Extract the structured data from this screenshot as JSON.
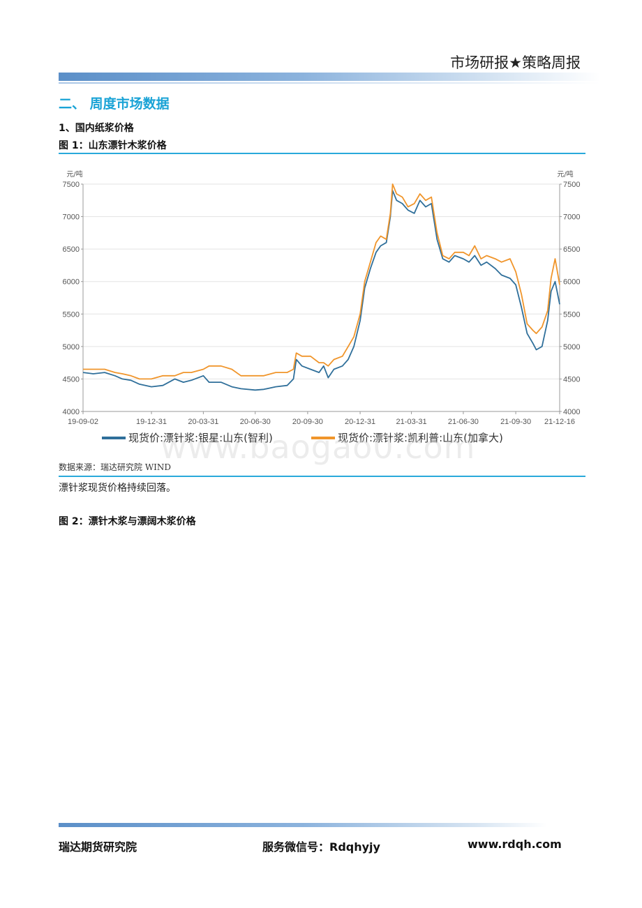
{
  "header": {
    "title": "市场研报★策略周报"
  },
  "section": {
    "title": "二、   周度市场数据"
  },
  "subsection": {
    "title": "1、国内纸浆价格"
  },
  "figure1": {
    "title": "图 1：山东漂针木浆价格"
  },
  "figure2": {
    "title": "图 2：漂针木浆与漂阔木浆价格"
  },
  "source": "数据来源：瑞达研究院 WIND",
  "comment": "漂针浆现货价格持续回落。",
  "watermark": "www.baogao0.com",
  "footer": {
    "org": "瑞达期货研究院",
    "wechat": "服务微信号：Rdqhyjy",
    "website": "www.rdqh.com"
  },
  "chart_data": {
    "type": "line",
    "title": "",
    "xlabel": "",
    "ylabel_left": "元/吨",
    "ylabel_right": "元/吨",
    "ylim": [
      4000,
      7500
    ],
    "yticks": [
      4000,
      4500,
      5000,
      5500,
      6000,
      6500,
      7000,
      7500
    ],
    "xlim": [
      "2019-09-02",
      "2021-12-16"
    ],
    "xticks": [
      "19-09-02",
      "19-12-31",
      "20-03-31",
      "20-06-30",
      "20-09-30",
      "20-12-31",
      "21-03-31",
      "21-06-30",
      "21-09-30",
      "21-12-16"
    ],
    "grid": true,
    "legend": "bottom",
    "series": [
      {
        "name": "现货价:漂针浆:银星:山东(智利)",
        "color": "#2f6f9a",
        "points": [
          [
            "2019-09-02",
            4600
          ],
          [
            "2019-09-20",
            4580
          ],
          [
            "2019-10-10",
            4600
          ],
          [
            "2019-10-28",
            4550
          ],
          [
            "2019-11-10",
            4500
          ],
          [
            "2019-11-25",
            4480
          ],
          [
            "2019-12-10",
            4420
          ],
          [
            "2019-12-31",
            4380
          ],
          [
            "2020-01-20",
            4400
          ],
          [
            "2020-02-10",
            4500
          ],
          [
            "2020-02-25",
            4450
          ],
          [
            "2020-03-10",
            4480
          ],
          [
            "2020-03-31",
            4550
          ],
          [
            "2020-04-10",
            4450
          ],
          [
            "2020-05-01",
            4450
          ],
          [
            "2020-05-20",
            4380
          ],
          [
            "2020-06-05",
            4350
          ],
          [
            "2020-06-30",
            4330
          ],
          [
            "2020-07-15",
            4340
          ],
          [
            "2020-08-05",
            4380
          ],
          [
            "2020-08-25",
            4400
          ],
          [
            "2020-09-05",
            4500
          ],
          [
            "2020-09-10",
            4800
          ],
          [
            "2020-09-20",
            4700
          ],
          [
            "2020-10-05",
            4650
          ],
          [
            "2020-10-20",
            4600
          ],
          [
            "2020-10-28",
            4700
          ],
          [
            "2020-11-05",
            4520
          ],
          [
            "2020-11-15",
            4650
          ],
          [
            "2020-11-30",
            4700
          ],
          [
            "2020-12-10",
            4800
          ],
          [
            "2020-12-20",
            5000
          ],
          [
            "2020-12-31",
            5400
          ],
          [
            "2021-01-08",
            5900
          ],
          [
            "2021-01-18",
            6200
          ],
          [
            "2021-01-28",
            6450
          ],
          [
            "2021-02-05",
            6550
          ],
          [
            "2021-02-15",
            6600
          ],
          [
            "2021-02-22",
            7000
          ],
          [
            "2021-02-26",
            7400
          ],
          [
            "2021-03-05",
            7250
          ],
          [
            "2021-03-15",
            7200
          ],
          [
            "2021-03-25",
            7100
          ],
          [
            "2021-04-05",
            7050
          ],
          [
            "2021-04-15",
            7250
          ],
          [
            "2021-04-25",
            7150
          ],
          [
            "2021-05-05",
            7200
          ],
          [
            "2021-05-15",
            6650
          ],
          [
            "2021-05-25",
            6350
          ],
          [
            "2021-06-05",
            6300
          ],
          [
            "2021-06-15",
            6400
          ],
          [
            "2021-06-30",
            6350
          ],
          [
            "2021-07-10",
            6300
          ],
          [
            "2021-07-20",
            6400
          ],
          [
            "2021-07-31",
            6250
          ],
          [
            "2021-08-10",
            6300
          ],
          [
            "2021-08-25",
            6200
          ],
          [
            "2021-09-05",
            6100
          ],
          [
            "2021-09-20",
            6050
          ],
          [
            "2021-09-30",
            5950
          ],
          [
            "2021-10-10",
            5600
          ],
          [
            "2021-10-20",
            5200
          ],
          [
            "2021-10-30",
            5050
          ],
          [
            "2021-11-05",
            4950
          ],
          [
            "2021-11-15",
            5000
          ],
          [
            "2021-11-25",
            5400
          ],
          [
            "2021-12-01",
            5850
          ],
          [
            "2021-12-08",
            6000
          ],
          [
            "2021-12-16",
            5650
          ]
        ]
      },
      {
        "name": "现货价:漂针浆:凯利普:山东(加拿大)",
        "color": "#f0952b",
        "points": [
          [
            "2019-09-02",
            4650
          ],
          [
            "2019-09-20",
            4650
          ],
          [
            "2019-10-10",
            4650
          ],
          [
            "2019-10-28",
            4600
          ],
          [
            "2019-11-10",
            4580
          ],
          [
            "2019-11-25",
            4550
          ],
          [
            "2019-12-10",
            4500
          ],
          [
            "2019-12-31",
            4500
          ],
          [
            "2020-01-20",
            4550
          ],
          [
            "2020-02-10",
            4550
          ],
          [
            "2020-02-25",
            4600
          ],
          [
            "2020-03-10",
            4600
          ],
          [
            "2020-03-31",
            4650
          ],
          [
            "2020-04-10",
            4700
          ],
          [
            "2020-05-01",
            4700
          ],
          [
            "2020-05-20",
            4650
          ],
          [
            "2020-06-05",
            4550
          ],
          [
            "2020-06-30",
            4550
          ],
          [
            "2020-07-15",
            4550
          ],
          [
            "2020-08-05",
            4600
          ],
          [
            "2020-08-25",
            4600
          ],
          [
            "2020-09-05",
            4650
          ],
          [
            "2020-09-10",
            4900
          ],
          [
            "2020-09-20",
            4850
          ],
          [
            "2020-10-05",
            4850
          ],
          [
            "2020-10-20",
            4750
          ],
          [
            "2020-10-28",
            4750
          ],
          [
            "2020-11-05",
            4700
          ],
          [
            "2020-11-15",
            4800
          ],
          [
            "2020-11-30",
            4850
          ],
          [
            "2020-12-10",
            5000
          ],
          [
            "2020-12-20",
            5150
          ],
          [
            "2020-12-31",
            5500
          ],
          [
            "2021-01-08",
            6000
          ],
          [
            "2021-01-18",
            6300
          ],
          [
            "2021-01-28",
            6600
          ],
          [
            "2021-02-05",
            6700
          ],
          [
            "2021-02-15",
            6650
          ],
          [
            "2021-02-22",
            7050
          ],
          [
            "2021-02-26",
            7500
          ],
          [
            "2021-03-05",
            7350
          ],
          [
            "2021-03-15",
            7300
          ],
          [
            "2021-03-25",
            7150
          ],
          [
            "2021-04-05",
            7200
          ],
          [
            "2021-04-15",
            7350
          ],
          [
            "2021-04-25",
            7250
          ],
          [
            "2021-05-05",
            7300
          ],
          [
            "2021-05-15",
            6750
          ],
          [
            "2021-05-25",
            6400
          ],
          [
            "2021-06-05",
            6350
          ],
          [
            "2021-06-15",
            6450
          ],
          [
            "2021-06-30",
            6450
          ],
          [
            "2021-07-10",
            6400
          ],
          [
            "2021-07-20",
            6550
          ],
          [
            "2021-07-31",
            6350
          ],
          [
            "2021-08-10",
            6400
          ],
          [
            "2021-08-25",
            6350
          ],
          [
            "2021-09-05",
            6300
          ],
          [
            "2021-09-20",
            6350
          ],
          [
            "2021-09-30",
            6150
          ],
          [
            "2021-10-10",
            5800
          ],
          [
            "2021-10-20",
            5350
          ],
          [
            "2021-10-30",
            5250
          ],
          [
            "2021-11-05",
            5200
          ],
          [
            "2021-11-15",
            5300
          ],
          [
            "2021-11-25",
            5550
          ],
          [
            "2021-12-01",
            6050
          ],
          [
            "2021-12-08",
            6350
          ],
          [
            "2021-12-16",
            5950
          ]
        ]
      }
    ]
  }
}
